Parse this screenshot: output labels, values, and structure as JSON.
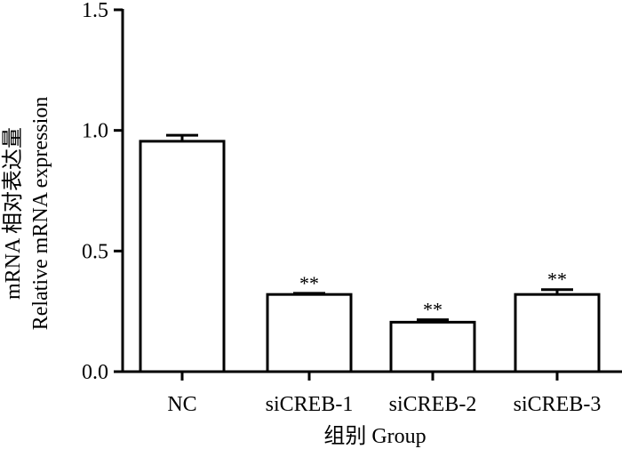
{
  "chart_data": {
    "type": "bar",
    "categories": [
      "NC",
      "siCREB-1",
      "siCREB-2",
      "siCREB-3"
    ],
    "values": [
      0.955,
      0.32,
      0.205,
      0.32
    ],
    "error": [
      0.025,
      0.005,
      0.01,
      0.02
    ],
    "significance": [
      "",
      "**",
      "**",
      "**"
    ],
    "ylim": [
      0,
      1.5
    ],
    "yticks": [
      "0.0",
      "0.5",
      "1.0",
      "1.5"
    ],
    "ytick_values": [
      0,
      0.5,
      1.0,
      1.5
    ],
    "ylabel_line1": "mRNA 相对表达量",
    "ylabel_line2": "Relative mRNA expression",
    "xlabel": "组别 Group",
    "colors": {
      "bar_fill": "#ffffff",
      "bar_stroke": "#000000",
      "axis": "#000000"
    }
  }
}
